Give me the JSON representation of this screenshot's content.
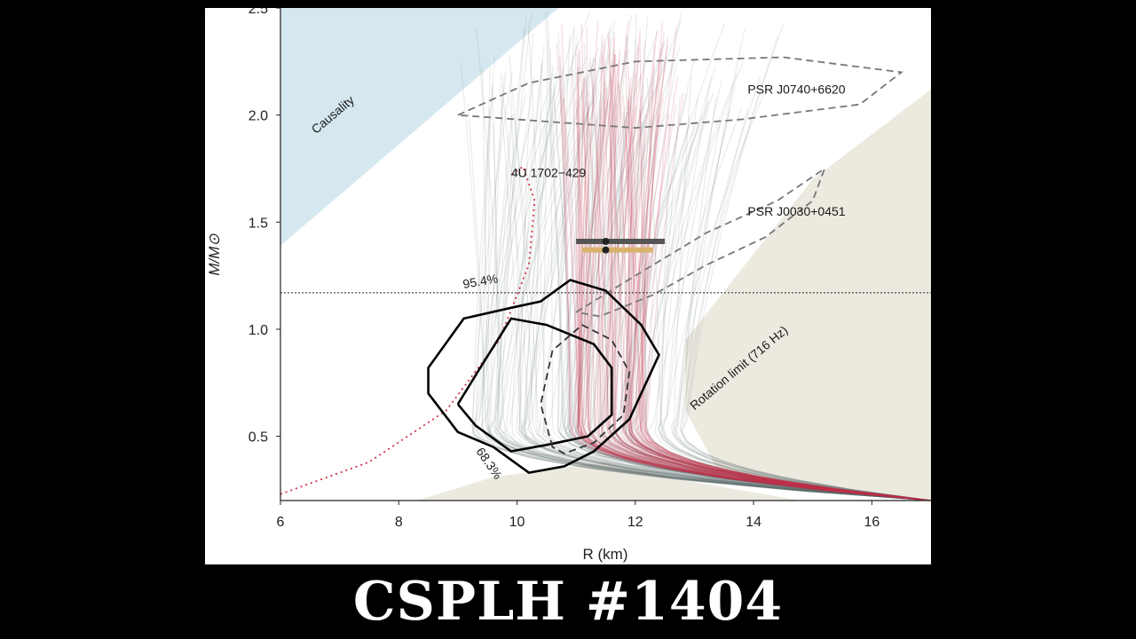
{
  "chart_data": {
    "type": "line",
    "xlabel": "R (km)",
    "ylabel": "M/M⊙",
    "xlim": [
      6,
      17
    ],
    "ylim": [
      0.2,
      2.5
    ],
    "xticks": [
      6,
      8,
      10,
      12,
      14,
      16
    ],
    "yticks": [
      0.5,
      1.0,
      1.5,
      2.0,
      2.5
    ],
    "x_tick_labels": [
      "6",
      "8",
      "10",
      "12",
      "14",
      "16"
    ],
    "y_tick_labels": [
      "0.5",
      "1.0",
      "1.5",
      "2.0",
      "2.5"
    ],
    "grid": false,
    "reference_line_y": 1.17,
    "regions": [
      {
        "name": "causality",
        "label": "Causality",
        "color": "#d6e8ef",
        "polygon": [
          [
            6,
            2.5
          ],
          [
            10.7,
            2.5
          ],
          [
            6,
            1.39
          ]
        ]
      },
      {
        "name": "rotation-limit",
        "label": "Rotation limit (716 Hz)",
        "color": "#ece9df",
        "polygon": [
          [
            17,
            0.2
          ],
          [
            17,
            2.12
          ],
          [
            15.0,
            1.7
          ],
          [
            12.85,
            0.95
          ],
          [
            12.85,
            0.62
          ],
          [
            13.4,
            0.34
          ],
          [
            14.8,
            0.24
          ]
        ]
      },
      {
        "name": "lower-band",
        "label": "",
        "color": "#ece9df",
        "polygon": [
          [
            8.3,
            0.2
          ],
          [
            9.6,
            0.31
          ],
          [
            11.5,
            0.38
          ],
          [
            12.7,
            0.3
          ],
          [
            14.8,
            0.2
          ]
        ]
      }
    ],
    "contours": [
      {
        "label": "PSR J0740+6620",
        "style": "dashed",
        "color": "#777777",
        "points": [
          [
            9.0,
            2.0
          ],
          [
            10.2,
            2.15
          ],
          [
            12.0,
            2.25
          ],
          [
            14.5,
            2.27
          ],
          [
            16.5,
            2.2
          ],
          [
            15.8,
            2.05
          ],
          [
            13.8,
            1.98
          ],
          [
            12.0,
            1.94
          ],
          [
            10.5,
            1.97
          ],
          [
            9.0,
            2.0
          ]
        ]
      },
      {
        "label": "PSR J0030+0451",
        "style": "dashed",
        "color": "#777777",
        "points": [
          [
            11.0,
            1.08
          ],
          [
            12.0,
            1.25
          ],
          [
            13.2,
            1.45
          ],
          [
            14.4,
            1.6
          ],
          [
            15.2,
            1.75
          ],
          [
            15.0,
            1.6
          ],
          [
            14.2,
            1.43
          ],
          [
            13.2,
            1.3
          ],
          [
            12.3,
            1.16
          ],
          [
            11.4,
            1.06
          ],
          [
            11.0,
            1.08
          ]
        ]
      },
      {
        "label": "4U 1702−429",
        "style": "dotted",
        "color": "#cc3344",
        "points": [
          [
            6.0,
            0.23
          ],
          [
            7.5,
            0.38
          ],
          [
            8.8,
            0.62
          ],
          [
            9.7,
            0.95
          ],
          [
            10.2,
            1.3
          ],
          [
            10.3,
            1.6
          ],
          [
            10.1,
            1.76
          ],
          [
            9.9,
            1.72
          ]
        ]
      },
      {
        "label": "95.4%",
        "style": "solid",
        "color": "#000000",
        "points": [
          [
            9.6,
            0.45
          ],
          [
            9.0,
            0.52
          ],
          [
            8.5,
            0.7
          ],
          [
            8.5,
            0.82
          ],
          [
            9.1,
            1.05
          ],
          [
            9.9,
            1.1
          ],
          [
            10.4,
            1.13
          ],
          [
            10.9,
            1.23
          ],
          [
            11.5,
            1.18
          ],
          [
            12.1,
            1.02
          ],
          [
            12.4,
            0.88
          ],
          [
            11.9,
            0.58
          ],
          [
            11.3,
            0.43
          ],
          [
            10.8,
            0.36
          ],
          [
            10.2,
            0.33
          ],
          [
            9.6,
            0.45
          ]
        ]
      },
      {
        "label": "68.3%",
        "style": "solid",
        "color": "#000000",
        "points": [
          [
            9.0,
            0.65
          ],
          [
            9.4,
            0.83
          ],
          [
            9.9,
            1.05
          ],
          [
            10.5,
            1.02
          ],
          [
            11.3,
            0.93
          ],
          [
            11.6,
            0.82
          ],
          [
            11.6,
            0.6
          ],
          [
            11.2,
            0.5
          ],
          [
            10.5,
            0.46
          ],
          [
            9.9,
            0.43
          ],
          [
            9.3,
            0.55
          ],
          [
            9.0,
            0.65
          ]
        ]
      },
      {
        "label": "",
        "style": "dashed",
        "color": "#333333",
        "points": [
          [
            10.6,
            0.45
          ],
          [
            10.4,
            0.65
          ],
          [
            10.6,
            0.9
          ],
          [
            11.1,
            1.02
          ],
          [
            11.6,
            0.95
          ],
          [
            11.9,
            0.8
          ],
          [
            11.8,
            0.6
          ],
          [
            11.3,
            0.47
          ],
          [
            10.8,
            0.42
          ],
          [
            10.6,
            0.45
          ]
        ]
      }
    ],
    "markers": [
      {
        "x": 11.5,
        "y": 1.41,
        "xerr": [
          11.0,
          12.5
        ],
        "color": "#555555"
      },
      {
        "x": 11.5,
        "y": 1.37,
        "xerr": [
          11.1,
          12.3
        ],
        "color": "#d9b36b"
      }
    ],
    "annotations": [
      {
        "text": "Causality",
        "x": 6.6,
        "y": 1.91,
        "angle": -40
      },
      {
        "text": "PSR J0740+6620",
        "x": 13.9,
        "y": 2.1,
        "angle": 0
      },
      {
        "text": "4U 1702−429",
        "x": 9.9,
        "y": 1.71,
        "angle": 0
      },
      {
        "text": "PSR J0030+0451",
        "x": 13.9,
        "y": 1.53,
        "angle": 0
      },
      {
        "text": "Rotation limit (716 Hz)",
        "x": 13.0,
        "y": 0.62,
        "angle": -40
      },
      {
        "text": "95.4%",
        "x": 9.1,
        "y": 1.19,
        "angle": -10
      },
      {
        "text": "68.3%",
        "x": 9.3,
        "y": 0.43,
        "angle": 55
      }
    ],
    "eos_bands": [
      {
        "name": "grey",
        "color": "#5f6a70"
      },
      {
        "name": "red",
        "color": "#c0334d"
      }
    ]
  },
  "caption": "CSPLH #1404"
}
